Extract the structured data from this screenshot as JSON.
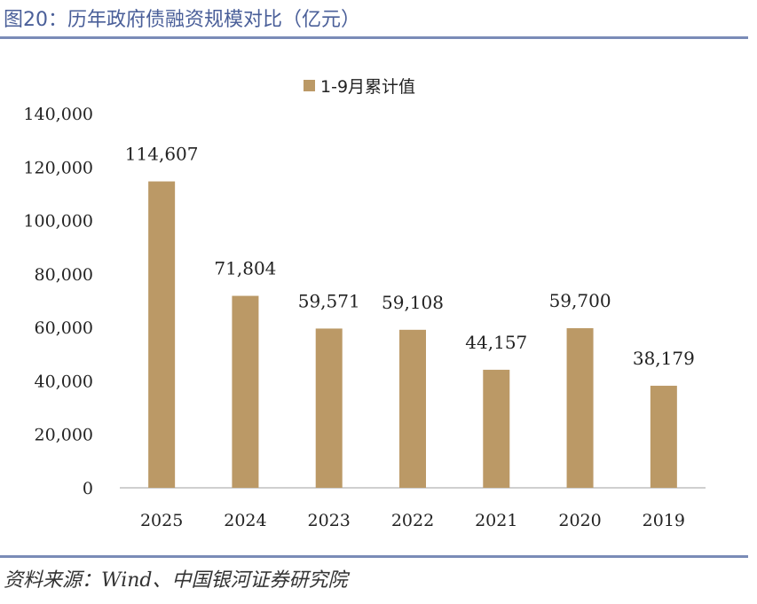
{
  "header": {
    "title": "图20：历年政府债融资规模对比（亿元）"
  },
  "footer": {
    "source": "资料来源：Wind、中国银河证券研究院"
  },
  "colors": {
    "bar": "#BB9966",
    "rule": "#7A8BB7",
    "title": "#4A5F99",
    "axis": "#BFBFBF"
  },
  "chart_data": {
    "type": "bar",
    "title": "",
    "categories": [
      "2025",
      "2024",
      "2023",
      "2022",
      "2021",
      "2020",
      "2019"
    ],
    "series": [
      {
        "name": "1-9月累计值",
        "values": [
          114607,
          71804,
          59571,
          59108,
          44157,
          59700,
          38179
        ]
      }
    ],
    "data_labels": [
      "114,607",
      "71,804",
      "59,571",
      "59,108",
      "44,157",
      "59,700",
      "38,179"
    ],
    "yticks": [
      "0",
      "20,000",
      "40,000",
      "60,000",
      "80,000",
      "100,000",
      "120,000",
      "140,000"
    ],
    "ylim": [
      0,
      140000
    ],
    "xlabel": "",
    "ylabel": "",
    "legend": "top-center",
    "grid": false
  }
}
